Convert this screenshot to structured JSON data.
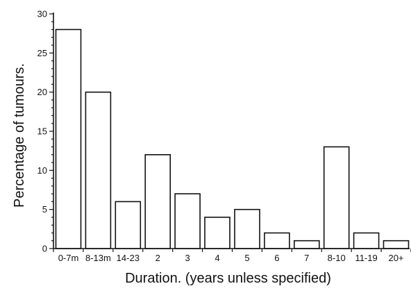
{
  "chart_data": {
    "type": "bar",
    "title": "",
    "xlabel": "Duration. (years unless specified)",
    "ylabel": "Percentage of tumours.",
    "ylim": [
      0,
      30
    ],
    "yticks": [
      0,
      5,
      10,
      15,
      20,
      25,
      30
    ],
    "grid": false,
    "categories": [
      "0-7m",
      "8-13m",
      "14-23",
      "2",
      "3",
      "4",
      "5",
      "6",
      "7",
      "8-10",
      "11-19",
      "20+"
    ],
    "values": [
      28,
      20,
      6,
      12,
      7,
      4,
      5,
      2,
      1,
      13,
      2,
      1
    ],
    "colors": {
      "bar_fill": "#ffffff",
      "bar_stroke": "#111111",
      "axis": "#111111",
      "text": "#111111"
    }
  }
}
